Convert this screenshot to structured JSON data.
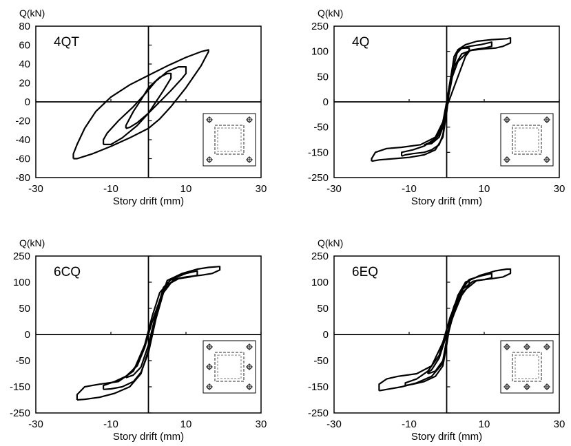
{
  "figure": {
    "panels_description": "Four hysteresis panels"
  },
  "chart_data": [
    {
      "type": "line",
      "panel_label": "4QT",
      "ylabel": "Q(kN)",
      "xlabel": "Story drift (mm)",
      "xlim": [
        -30,
        30
      ],
      "ylim": [
        -80,
        80
      ],
      "xticks": [
        -30,
        -10,
        10,
        30
      ],
      "yticks": [
        80,
        60,
        40,
        20,
        0,
        -20,
        -40,
        -60,
        -80
      ],
      "y_axis_scale": "linear",
      "inset_bolts": "4-corner",
      "loops": [
        {
          "x": [
            -6,
            -5,
            -3,
            0,
            2,
            4,
            6,
            6,
            5,
            3,
            0,
            -2,
            -4,
            -6,
            -6
          ],
          "y": [
            -28,
            -27,
            -22,
            -12,
            0,
            12,
            25,
            30,
            30,
            26,
            15,
            2,
            -10,
            -25,
            -28
          ]
        },
        {
          "x": [
            -12,
            -10,
            -7,
            -3,
            0,
            3,
            6,
            9,
            10,
            10,
            8,
            5,
            2,
            -1,
            -4,
            -8,
            -11,
            -12,
            -12
          ],
          "y": [
            -45,
            -45,
            -38,
            -25,
            -12,
            0,
            12,
            25,
            30,
            37,
            37,
            32,
            22,
            8,
            -5,
            -20,
            -33,
            -40,
            -45
          ]
        },
        {
          "x": [
            -20,
            -19,
            -15,
            -10,
            -5,
            0,
            3,
            6,
            10,
            14,
            16,
            16,
            14,
            10,
            5,
            0,
            -5,
            -10,
            -14,
            -17,
            -19,
            -20,
            -20
          ],
          "y": [
            -60,
            -60,
            -55,
            -47,
            -38,
            -28,
            -18,
            -5,
            15,
            38,
            53,
            55,
            53,
            47,
            38,
            28,
            18,
            5,
            -10,
            -28,
            -45,
            -55,
            -60
          ]
        }
      ]
    },
    {
      "type": "line",
      "panel_label": "4Q",
      "ylabel": "Q(kN)",
      "xlabel": "Story drift (mm)",
      "xlim": [
        -30,
        30
      ],
      "ylim": [
        -250,
        250
      ],
      "xticks": [
        -30,
        -10,
        10,
        30
      ],
      "yticks": [
        250,
        100,
        50,
        0,
        -50,
        -150,
        -250
      ],
      "y_axis_scale": "compressed at ends (ticks 250,100,50,0,-50,-150,-250 as printed)",
      "inset_bolts": "4-corner",
      "loops": [
        {
          "x": [
            -6,
            -4,
            -2,
            -1,
            0,
            1,
            2,
            3,
            4,
            5,
            6,
            6,
            5,
            3,
            2,
            1,
            0,
            -1,
            -2,
            -4,
            -6,
            -6
          ],
          "y": [
            -120,
            -115,
            -90,
            -50,
            0,
            45,
            90,
            110,
            118,
            120,
            120,
            100,
            90,
            50,
            30,
            10,
            -10,
            -40,
            -80,
            -110,
            -120,
            -120
          ]
        },
        {
          "x": [
            -12,
            -11,
            -9,
            -6,
            -4,
            -2,
            -1,
            0,
            1,
            2,
            4,
            6,
            9,
            11,
            12,
            12,
            10,
            7,
            4,
            2,
            1,
            0,
            -1,
            -3,
            -6,
            -9,
            -12,
            -12
          ],
          "y": [
            -165,
            -160,
            -155,
            -150,
            -140,
            -120,
            -80,
            -20,
            40,
            90,
            120,
            130,
            140,
            150,
            155,
            130,
            120,
            110,
            95,
            70,
            30,
            -5,
            -45,
            -95,
            -125,
            -140,
            -150,
            -165
          ]
        },
        {
          "x": [
            -20,
            -18,
            -14,
            -10,
            -6,
            -3,
            -1,
            0,
            1,
            3,
            5,
            8,
            12,
            16,
            17,
            17,
            15,
            13,
            10,
            6,
            3,
            1,
            0,
            -1,
            -3,
            -7,
            -12,
            -16,
            -19,
            -20,
            -20
          ],
          "y": [
            -185,
            -180,
            -175,
            -170,
            -160,
            -140,
            -90,
            -20,
            45,
            110,
            140,
            160,
            170,
            175,
            180,
            150,
            130,
            120,
            115,
            105,
            80,
            40,
            0,
            -40,
            -90,
            -120,
            -130,
            -135,
            -150,
            -175,
            -185
          ]
        }
      ]
    },
    {
      "type": "line",
      "panel_label": "6CQ",
      "ylabel": "Q(kN)",
      "xlabel": "Story drift (mm)",
      "xlim": [
        -30,
        30
      ],
      "ylim": [
        -250,
        250
      ],
      "xticks": [
        -30,
        -10,
        10,
        30
      ],
      "yticks": [
        250,
        100,
        50,
        0,
        -50,
        -150,
        -250
      ],
      "y_axis_scale": "compressed at ends (ticks 250,100,50,0,-50,-150,-250 as printed)",
      "inset_bolts": "6-side",
      "loops": [
        {
          "x": [
            -6,
            -4,
            -2,
            0,
            2,
            4,
            6,
            7,
            7,
            5,
            3,
            1,
            -1,
            -3,
            -5,
            -6,
            -6
          ],
          "y": [
            -115,
            -105,
            -75,
            -20,
            40,
            90,
            115,
            125,
            110,
            95,
            65,
            25,
            -20,
            -65,
            -100,
            -110,
            -115
          ]
        },
        {
          "x": [
            -12,
            -10,
            -7,
            -4,
            -2,
            0,
            2,
            4,
            7,
            10,
            12,
            13,
            13,
            11,
            8,
            5,
            3,
            1,
            -1,
            -3,
            -6,
            -9,
            -12,
            -12
          ],
          "y": [
            -160,
            -158,
            -150,
            -130,
            -95,
            -35,
            30,
            80,
            125,
            150,
            160,
            165,
            140,
            130,
            120,
            95,
            65,
            25,
            -25,
            -70,
            -110,
            -130,
            -145,
            -160
          ]
        },
        {
          "x": [
            -19,
            -17,
            -13,
            -9,
            -5,
            -2,
            0,
            2,
            5,
            9,
            13,
            16,
            19,
            19,
            17,
            14,
            10,
            6,
            3,
            1,
            -1,
            -4,
            -8,
            -13,
            -17,
            -19,
            -19
          ],
          "y": [
            -200,
            -198,
            -190,
            -175,
            -150,
            -100,
            -30,
            40,
            110,
            150,
            175,
            185,
            190,
            170,
            150,
            140,
            130,
            115,
            80,
            35,
            -20,
            -90,
            -130,
            -140,
            -150,
            -180,
            -200
          ]
        }
      ]
    },
    {
      "type": "line",
      "panel_label": "6EQ",
      "ylabel": "Q(kN)",
      "xlabel": "Story drift (mm)",
      "xlim": [
        -30,
        30
      ],
      "ylim": [
        -250,
        250
      ],
      "xticks": [
        -30,
        -10,
        10,
        30
      ],
      "yticks": [
        250,
        100,
        50,
        0,
        -50,
        -150,
        -250
      ],
      "y_axis_scale": "compressed at ends (ticks 250,100,50,0,-50,-150,-250 as printed)",
      "inset_bolts": "6-top-bottom",
      "loops": [
        {
          "x": [
            -5,
            -3,
            -1,
            0,
            1,
            3,
            5,
            6,
            6,
            4,
            2,
            0,
            -2,
            -4,
            -5,
            -5
          ],
          "y": [
            -100,
            -90,
            -50,
            -10,
            30,
            75,
            100,
            110,
            95,
            75,
            40,
            0,
            -45,
            -85,
            -95,
            -100
          ]
        },
        {
          "x": [
            -11,
            -9,
            -6,
            -3,
            -1,
            0,
            1,
            3,
            6,
            9,
            11,
            12,
            12,
            10,
            7,
            4,
            2,
            0,
            -2,
            -5,
            -8,
            -11,
            -11
          ],
          "y": [
            -145,
            -140,
            -130,
            -110,
            -70,
            -20,
            25,
            75,
            115,
            135,
            145,
            150,
            125,
            115,
            105,
            85,
            55,
            10,
            -40,
            -90,
            -120,
            -135,
            -145
          ]
        },
        {
          "x": [
            -18,
            -16,
            -12,
            -8,
            -4,
            -1,
            0,
            2,
            5,
            9,
            13,
            16,
            17,
            17,
            15,
            12,
            8,
            4,
            1,
            -1,
            -4,
            -8,
            -13,
            -16,
            -18,
            -18
          ],
          "y": [
            -165,
            -160,
            -150,
            -135,
            -110,
            -60,
            -10,
            45,
            100,
            140,
            165,
            175,
            175,
            150,
            130,
            120,
            110,
            80,
            35,
            -15,
            -70,
            -100,
            -110,
            -120,
            -140,
            -165
          ]
        }
      ]
    }
  ]
}
